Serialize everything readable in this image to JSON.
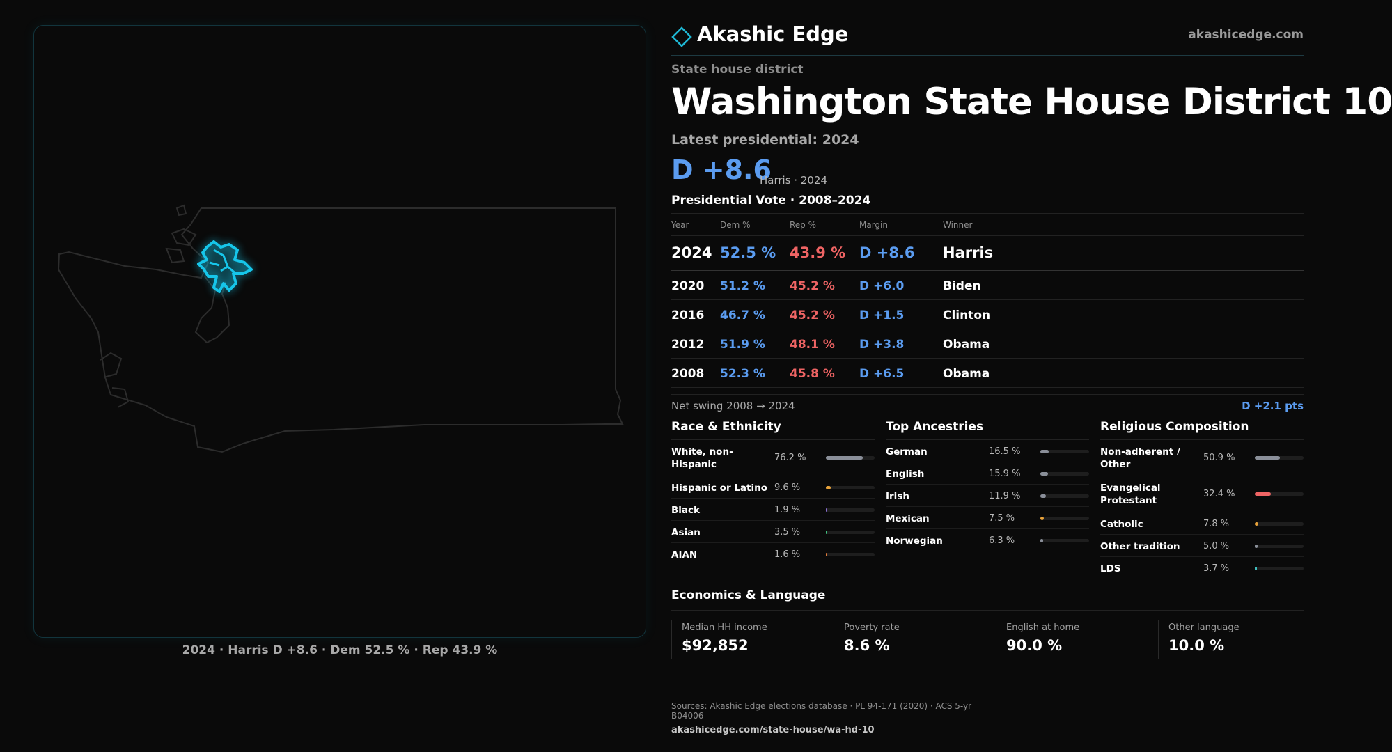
{
  "brand": {
    "name": "Akashic Edge",
    "url": "akashicedge.com",
    "accent": "#1fb8d4"
  },
  "map": {
    "caption": "2024 · Harris D +8.6 · Dem 52.5 % · Rep 43.9 %",
    "state_outline_color": "#2c2c2c",
    "district_color": "#16c6ea"
  },
  "district": {
    "kicker": "State house district",
    "title": "Washington State House District 10",
    "latest_label": "Latest presidential: 2024",
    "margin_big": "D +8.6",
    "margin_sub": "Harris · 2024"
  },
  "presidential": {
    "title": "Presidential Vote · 2008–2024",
    "headers": {
      "year": "Year",
      "dem": "Dem %",
      "rep": "Rep %",
      "margin": "Margin",
      "winner": "Winner"
    },
    "rows": [
      {
        "year": "2024",
        "dem": "52.5 %",
        "rep": "43.9 %",
        "margin": "D +8.6",
        "winner": "Harris"
      },
      {
        "year": "2020",
        "dem": "51.2 %",
        "rep": "45.2 %",
        "margin": "D +6.0",
        "winner": "Biden"
      },
      {
        "year": "2016",
        "dem": "46.7 %",
        "rep": "45.2 %",
        "margin": "D +1.5",
        "winner": "Clinton"
      },
      {
        "year": "2012",
        "dem": "51.9 %",
        "rep": "48.1 %",
        "margin": "D +3.8",
        "winner": "Obama"
      },
      {
        "year": "2008",
        "dem": "52.3 %",
        "rep": "45.8 %",
        "margin": "D +6.5",
        "winner": "Obama"
      }
    ],
    "swing_label": "Net swing 2008 → 2024",
    "swing_value": "D +2.1 pts"
  },
  "race": {
    "title": "Race & Ethnicity",
    "items": [
      {
        "label": "White, non-Hispanic",
        "value": "76.2 %",
        "pct": 76.2,
        "color": "#8a8f99"
      },
      {
        "label": "Hispanic or Latino",
        "value": "9.6 %",
        "pct": 9.6,
        "color": "#e8a23a"
      },
      {
        "label": "Black",
        "value": "1.9 %",
        "pct": 1.9,
        "color": "#8a6fd0"
      },
      {
        "label": "Asian",
        "value": "3.5 %",
        "pct": 3.5,
        "color": "#3fbf7f"
      },
      {
        "label": "AIAN",
        "value": "1.6 %",
        "pct": 1.6,
        "color": "#e07a3a"
      }
    ]
  },
  "ancestry": {
    "title": "Top Ancestries",
    "items": [
      {
        "label": "German",
        "value": "16.5 %",
        "pct": 16.5,
        "color": "#8a8f99"
      },
      {
        "label": "English",
        "value": "15.9 %",
        "pct": 15.9,
        "color": "#8a8f99"
      },
      {
        "label": "Irish",
        "value": "11.9 %",
        "pct": 11.9,
        "color": "#8a8f99"
      },
      {
        "label": "Mexican",
        "value": "7.5 %",
        "pct": 7.5,
        "color": "#e8a23a"
      },
      {
        "label": "Norwegian",
        "value": "6.3 %",
        "pct": 6.3,
        "color": "#8a8f99"
      }
    ]
  },
  "religion": {
    "title": "Religious Composition",
    "items": [
      {
        "label": "Non-adherent / Other",
        "value": "50.9 %",
        "pct": 50.9,
        "color": "#8a8f99"
      },
      {
        "label": "Evangelical Protestant",
        "value": "32.4 %",
        "pct": 32.4,
        "color": "#ef6464"
      },
      {
        "label": "Catholic",
        "value": "7.8 %",
        "pct": 7.8,
        "color": "#e8a23a"
      },
      {
        "label": "Other tradition",
        "value": "5.0 %",
        "pct": 5.0,
        "color": "#8a8f99"
      },
      {
        "label": "LDS",
        "value": "3.7 %",
        "pct": 3.7,
        "color": "#3fbfbf"
      }
    ]
  },
  "economics": {
    "title": "Economics & Language",
    "cards": [
      {
        "label": "Median HH income",
        "value": "$92,852"
      },
      {
        "label": "Poverty rate",
        "value": "8.6 %"
      },
      {
        "label": "English at home",
        "value": "90.0 %"
      },
      {
        "label": "Other language",
        "value": "10.0 %"
      }
    ]
  },
  "sources": {
    "line1": "Sources: Akashic Edge elections database · PL 94-171 (2020) · ACS 5-yr B04006",
    "line2": "akashicedge.com/state-house/wa-hd-10"
  }
}
